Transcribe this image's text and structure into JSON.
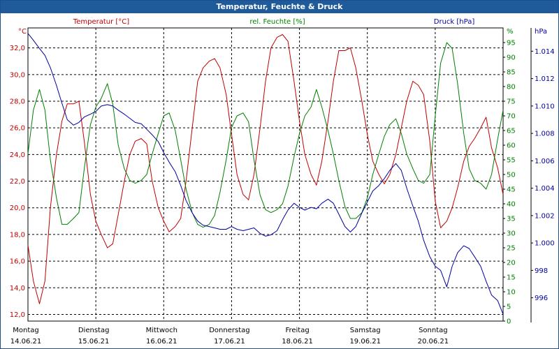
{
  "window": {
    "title": "Temperatur, Feuchte & Druck"
  },
  "colors": {
    "temperature": "#c00000",
    "humidity": "#008000",
    "pressure": "#0000a0",
    "grid": "#000000",
    "titlebar": "#1f5a9a"
  },
  "chart_data": {
    "type": "line",
    "title": "Temperatur, Feuchte & Druck",
    "grid": true,
    "x_labels": [
      {
        "day": "Montag",
        "date": "14.06.21"
      },
      {
        "day": "Dienstag",
        "date": "15.06.21"
      },
      {
        "day": "Mittwoch",
        "date": "16.06.21"
      },
      {
        "day": "Donnerstag",
        "date": "17.06.21"
      },
      {
        "day": "Freitag",
        "date": "18.06.21"
      },
      {
        "day": "Samstag",
        "date": "19.06.21"
      },
      {
        "day": "Sonntag",
        "date": "20.06.21"
      }
    ],
    "x_range_days": [
      0,
      7
    ],
    "axes": {
      "left": {
        "unit": "°C",
        "range": [
          11.5,
          33.5
        ],
        "ticks": [
          "32,0",
          "30,0",
          "28,0",
          "26,0",
          "24,0",
          "22,0",
          "20,0",
          "18,0",
          "16,0",
          "14,0",
          "12,0"
        ],
        "tick_values": [
          32,
          30,
          28,
          26,
          24,
          22,
          20,
          18,
          16,
          14,
          12
        ]
      },
      "right1": {
        "unit": "%",
        "range": [
          0,
          100
        ],
        "ticks": [
          "95",
          "90",
          "85",
          "80",
          "75",
          "70",
          "65",
          "60",
          "55",
          "50",
          "45",
          "40",
          "35",
          "30",
          "25",
          "20",
          "15",
          "10",
          "5",
          "0"
        ],
        "tick_values": [
          95,
          90,
          85,
          80,
          75,
          70,
          65,
          60,
          55,
          50,
          45,
          40,
          35,
          30,
          25,
          20,
          15,
          10,
          5,
          0
        ]
      },
      "right2": {
        "unit": "hPa",
        "range": [
          994.3,
          1015.7
        ],
        "ticks": [
          "1.014",
          "1.012",
          "1.010",
          "1.008",
          "1.006",
          "1.004",
          "1.002",
          "1.000",
          "998",
          "996"
        ],
        "tick_values": [
          1014,
          1012,
          1010,
          1008,
          1006,
          1004,
          1002,
          1000,
          998,
          996
        ]
      }
    },
    "series": [
      {
        "name": "Temperatur [°C]",
        "axis": "left",
        "points": [
          [
            0,
            17.2
          ],
          [
            0.08,
            14.5
          ],
          [
            0.17,
            12.8
          ],
          [
            0.25,
            14.5
          ],
          [
            0.33,
            20
          ],
          [
            0.42,
            24
          ],
          [
            0.5,
            26.5
          ],
          [
            0.58,
            27.8
          ],
          [
            0.67,
            27.8
          ],
          [
            0.75,
            28.0
          ],
          [
            0.83,
            25
          ],
          [
            0.92,
            21
          ],
          [
            1.0,
            19.0
          ],
          [
            1.08,
            18.0
          ],
          [
            1.17,
            17.0
          ],
          [
            1.25,
            17.3
          ],
          [
            1.33,
            19.5
          ],
          [
            1.42,
            22
          ],
          [
            1.5,
            24
          ],
          [
            1.58,
            25.0
          ],
          [
            1.67,
            25.2
          ],
          [
            1.75,
            24.8
          ],
          [
            1.83,
            22
          ],
          [
            1.92,
            20
          ],
          [
            2.0,
            19.0
          ],
          [
            2.08,
            18.2
          ],
          [
            2.17,
            18.6
          ],
          [
            2.25,
            19.2
          ],
          [
            2.33,
            22
          ],
          [
            2.42,
            26
          ],
          [
            2.5,
            29.5
          ],
          [
            2.58,
            30.5
          ],
          [
            2.67,
            31.0
          ],
          [
            2.75,
            31.2
          ],
          [
            2.83,
            30.5
          ],
          [
            2.92,
            28.5
          ],
          [
            3.0,
            25.5
          ],
          [
            3.08,
            22.5
          ],
          [
            3.17,
            21.0
          ],
          [
            3.25,
            20.6
          ],
          [
            3.33,
            22.5
          ],
          [
            3.42,
            26
          ],
          [
            3.5,
            29.5
          ],
          [
            3.58,
            32
          ],
          [
            3.67,
            32.8
          ],
          [
            3.75,
            33.0
          ],
          [
            3.83,
            32.5
          ],
          [
            3.92,
            29.5
          ],
          [
            4.0,
            26.5
          ],
          [
            4.08,
            24.0
          ],
          [
            4.17,
            22.5
          ],
          [
            4.25,
            21.7
          ],
          [
            4.33,
            23.5
          ],
          [
            4.42,
            26.5
          ],
          [
            4.5,
            29.5
          ],
          [
            4.58,
            31.8
          ],
          [
            4.67,
            31.8
          ],
          [
            4.75,
            32.0
          ],
          [
            4.83,
            30.5
          ],
          [
            4.92,
            28
          ],
          [
            5.0,
            25.5
          ],
          [
            5.08,
            23.5
          ],
          [
            5.17,
            22.5
          ],
          [
            5.25,
            21.8
          ],
          [
            5.33,
            22.5
          ],
          [
            5.42,
            24
          ],
          [
            5.5,
            26
          ],
          [
            5.58,
            28
          ],
          [
            5.67,
            29.5
          ],
          [
            5.75,
            29.2
          ],
          [
            5.83,
            28.5
          ],
          [
            5.92,
            25
          ],
          [
            6.0,
            20.5
          ],
          [
            6.08,
            18.5
          ],
          [
            6.17,
            19.0
          ],
          [
            6.25,
            20.0
          ],
          [
            6.33,
            21.5
          ],
          [
            6.42,
            23.5
          ],
          [
            6.5,
            24.6
          ],
          [
            6.58,
            25.2
          ],
          [
            6.67,
            26.0
          ],
          [
            6.75,
            26.8
          ],
          [
            6.83,
            24.5
          ],
          [
            6.92,
            23.0
          ],
          [
            7.0,
            21.0
          ]
        ]
      },
      {
        "name": "rel. Feuchte [%]",
        "axis": "right1",
        "points": [
          [
            0,
            57
          ],
          [
            0.08,
            72
          ],
          [
            0.17,
            79
          ],
          [
            0.25,
            72
          ],
          [
            0.33,
            55
          ],
          [
            0.42,
            42
          ],
          [
            0.5,
            33
          ],
          [
            0.58,
            33
          ],
          [
            0.67,
            35
          ],
          [
            0.75,
            37
          ],
          [
            0.83,
            52
          ],
          [
            0.92,
            67
          ],
          [
            1.0,
            73
          ],
          [
            1.08,
            76
          ],
          [
            1.17,
            81
          ],
          [
            1.25,
            74
          ],
          [
            1.33,
            60
          ],
          [
            1.42,
            52
          ],
          [
            1.5,
            48
          ],
          [
            1.58,
            47
          ],
          [
            1.67,
            48
          ],
          [
            1.75,
            50
          ],
          [
            1.83,
            57
          ],
          [
            1.92,
            64
          ],
          [
            2.0,
            70
          ],
          [
            2.08,
            71
          ],
          [
            2.17,
            65
          ],
          [
            2.25,
            55
          ],
          [
            2.33,
            45
          ],
          [
            2.42,
            37
          ],
          [
            2.5,
            33
          ],
          [
            2.58,
            32
          ],
          [
            2.67,
            33
          ],
          [
            2.75,
            36
          ],
          [
            2.83,
            44
          ],
          [
            2.92,
            55
          ],
          [
            3.0,
            66
          ],
          [
            3.08,
            70
          ],
          [
            3.17,
            71
          ],
          [
            3.25,
            68
          ],
          [
            3.33,
            55
          ],
          [
            3.42,
            43
          ],
          [
            3.5,
            38
          ],
          [
            3.58,
            37
          ],
          [
            3.67,
            38
          ],
          [
            3.75,
            40
          ],
          [
            3.83,
            46
          ],
          [
            3.92,
            56
          ],
          [
            4.0,
            64
          ],
          [
            4.08,
            70
          ],
          [
            4.17,
            73
          ],
          [
            4.25,
            79
          ],
          [
            4.33,
            73
          ],
          [
            4.42,
            65
          ],
          [
            4.5,
            57
          ],
          [
            4.58,
            48
          ],
          [
            4.67,
            39
          ],
          [
            4.75,
            35
          ],
          [
            4.83,
            35
          ],
          [
            4.92,
            37
          ],
          [
            5.0,
            42
          ],
          [
            5.08,
            50
          ],
          [
            5.17,
            57
          ],
          [
            5.25,
            63
          ],
          [
            5.33,
            67
          ],
          [
            5.42,
            69
          ],
          [
            5.5,
            64
          ],
          [
            5.58,
            57
          ],
          [
            5.67,
            52
          ],
          [
            5.75,
            48
          ],
          [
            5.83,
            47
          ],
          [
            5.92,
            50
          ],
          [
            6.0,
            70
          ],
          [
            6.08,
            88
          ],
          [
            6.17,
            95
          ],
          [
            6.25,
            93
          ],
          [
            6.33,
            81
          ],
          [
            6.42,
            64
          ],
          [
            6.5,
            52
          ],
          [
            6.58,
            48
          ],
          [
            6.67,
            47
          ],
          [
            6.75,
            45
          ],
          [
            6.83,
            50
          ],
          [
            6.92,
            62
          ],
          [
            7.0,
            72
          ]
        ]
      },
      {
        "name": "Druck [hPa]",
        "axis": "right2",
        "points": [
          [
            0,
            1015.3
          ],
          [
            0.08,
            1014.8
          ],
          [
            0.17,
            1014.2
          ],
          [
            0.25,
            1013.7
          ],
          [
            0.33,
            1012.8
          ],
          [
            0.42,
            1011.5
          ],
          [
            0.5,
            1010.2
          ],
          [
            0.58,
            1009.0
          ],
          [
            0.67,
            1008.6
          ],
          [
            0.75,
            1008.8
          ],
          [
            0.83,
            1009.2
          ],
          [
            0.92,
            1009.4
          ],
          [
            1.0,
            1009.6
          ],
          [
            1.08,
            1010.0
          ],
          [
            1.17,
            1010.1
          ],
          [
            1.25,
            1010.0
          ],
          [
            1.33,
            1009.7
          ],
          [
            1.42,
            1009.4
          ],
          [
            1.5,
            1009.1
          ],
          [
            1.58,
            1008.8
          ],
          [
            1.67,
            1008.7
          ],
          [
            1.75,
            1008.3
          ],
          [
            1.83,
            1007.9
          ],
          [
            1.92,
            1007.4
          ],
          [
            2.0,
            1006.6
          ],
          [
            2.08,
            1005.9
          ],
          [
            2.17,
            1005.2
          ],
          [
            2.25,
            1004.2
          ],
          [
            2.33,
            1003.1
          ],
          [
            2.42,
            1002.2
          ],
          [
            2.5,
            1001.6
          ],
          [
            2.58,
            1001.3
          ],
          [
            2.67,
            1001.2
          ],
          [
            2.75,
            1001.1
          ],
          [
            2.83,
            1001.0
          ],
          [
            2.92,
            1001.0
          ],
          [
            3.0,
            1001.2
          ],
          [
            3.08,
            1001.0
          ],
          [
            3.17,
            1000.9
          ],
          [
            3.25,
            1001.0
          ],
          [
            3.33,
            1001.1
          ],
          [
            3.42,
            1000.7
          ],
          [
            3.5,
            1000.5
          ],
          [
            3.58,
            1000.6
          ],
          [
            3.67,
            1000.9
          ],
          [
            3.75,
            1001.7
          ],
          [
            3.83,
            1002.4
          ],
          [
            3.92,
            1002.9
          ],
          [
            4.0,
            1002.6
          ],
          [
            4.08,
            1002.4
          ],
          [
            4.17,
            1002.6
          ],
          [
            4.25,
            1002.5
          ],
          [
            4.33,
            1002.9
          ],
          [
            4.42,
            1003.2
          ],
          [
            4.5,
            1002.9
          ],
          [
            4.58,
            1002.1
          ],
          [
            4.67,
            1001.2
          ],
          [
            4.75,
            1000.8
          ],
          [
            4.83,
            1001.2
          ],
          [
            4.92,
            1002.2
          ],
          [
            5.0,
            1003.0
          ],
          [
            5.08,
            1003.8
          ],
          [
            5.17,
            1004.2
          ],
          [
            5.25,
            1004.7
          ],
          [
            5.33,
            1005.3
          ],
          [
            5.42,
            1005.8
          ],
          [
            5.5,
            1005.3
          ],
          [
            5.58,
            1004.0
          ],
          [
            5.67,
            1002.7
          ],
          [
            5.75,
            1001.6
          ],
          [
            5.83,
            1000.2
          ],
          [
            5.92,
            999.0
          ],
          [
            6.0,
            998.3
          ],
          [
            6.08,
            998.0
          ],
          [
            6.17,
            996.8
          ],
          [
            6.25,
            998.3
          ],
          [
            6.33,
            999.3
          ],
          [
            6.42,
            999.8
          ],
          [
            6.5,
            999.6
          ],
          [
            6.58,
            999.0
          ],
          [
            6.67,
            998.3
          ],
          [
            6.75,
            997.2
          ],
          [
            6.83,
            996.2
          ],
          [
            6.92,
            995.8
          ],
          [
            7.0,
            994.8
          ]
        ]
      }
    ]
  }
}
